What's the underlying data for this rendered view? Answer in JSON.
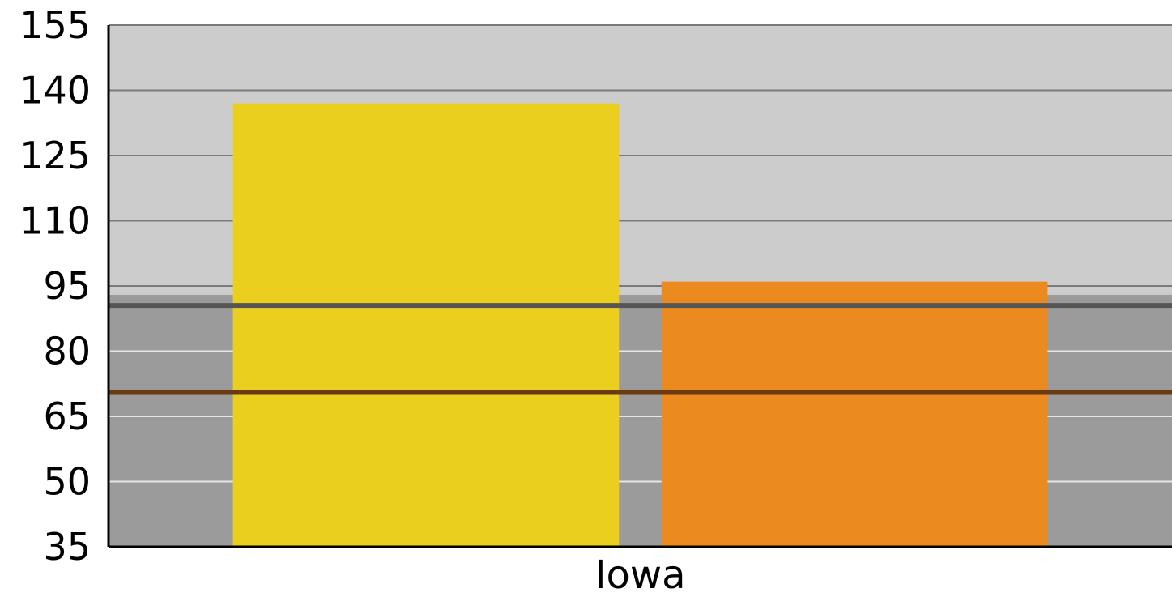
{
  "chart_data": {
    "type": "bar",
    "title": "",
    "xlabel": "",
    "ylabel": "",
    "categories": [
      "Iowa"
    ],
    "ylim": [
      35,
      155
    ],
    "yticks": [
      35,
      50,
      65,
      80,
      95,
      110,
      125,
      140,
      155
    ],
    "grid": true,
    "legend": "none",
    "series": [
      {
        "values": [
          137
        ],
        "color": "#ebcf1f"
      },
      {
        "values": [
          96
        ],
        "color": "#eb8a1f"
      }
    ],
    "bands": [
      {
        "from": 35,
        "to": 93,
        "color": "#9b9b9b"
      },
      {
        "from": 93,
        "to": 155,
        "color": "#cccccc"
      }
    ],
    "reference_lines": [
      {
        "value": 90.5,
        "color": "#555555"
      },
      {
        "value": 70.5,
        "color": "#6b3a10"
      }
    ]
  }
}
